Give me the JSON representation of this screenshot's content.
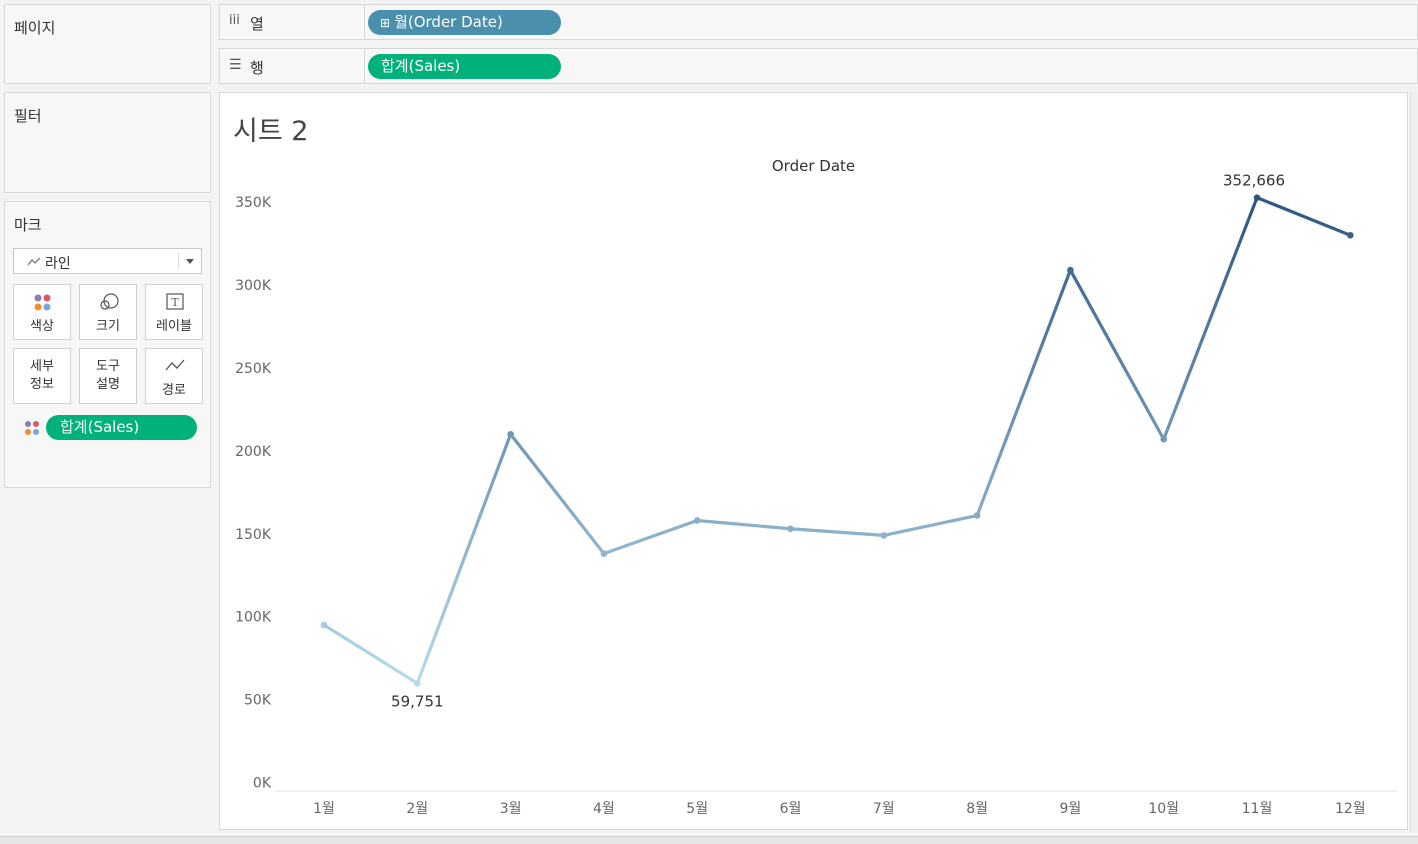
{
  "panels": {
    "pages": "페이지",
    "filters": "필터",
    "marks": "마크"
  },
  "columns_shelf": {
    "label": "열",
    "icon": "columns-icon",
    "pill": "월(Order Date)",
    "pill_icon": "expand-plus-icon"
  },
  "rows_shelf": {
    "label": "행",
    "icon": "rows-icon",
    "pill": "합계(Sales)"
  },
  "marks_card": {
    "mark_type": "라인",
    "buttons": {
      "color": "색상",
      "size": "크기",
      "label": "레이블",
      "detail_line1": "세부",
      "detail_line2": "정보",
      "tooltip_line1": "도구",
      "tooltip_line2": "설명",
      "path": "경로"
    },
    "color_pill": "합계(Sales)"
  },
  "sheet": {
    "title": "시트 2",
    "column_header": "Order Date"
  },
  "chart_data": {
    "type": "line",
    "categories": [
      "1월",
      "2월",
      "3월",
      "4월",
      "5월",
      "6월",
      "7월",
      "8월",
      "9월",
      "10월",
      "11월",
      "12월"
    ],
    "values": [
      95000,
      59751,
      210000,
      138000,
      158000,
      153000,
      149000,
      161000,
      309000,
      207000,
      352666,
      330000
    ],
    "ylim": [
      0,
      370000
    ],
    "yticks": [
      0,
      50000,
      100000,
      150000,
      200000,
      250000,
      300000,
      350000
    ],
    "ytick_labels": [
      "0K",
      "50K",
      "100K",
      "150K",
      "200K",
      "250K",
      "300K",
      "350K"
    ],
    "data_labels": [
      {
        "index": 1,
        "text": "59,751"
      },
      {
        "index": 10,
        "text": "352,666"
      }
    ],
    "color_range": [
      "#b9dcf0",
      "#2c5582"
    ],
    "grid": false
  }
}
